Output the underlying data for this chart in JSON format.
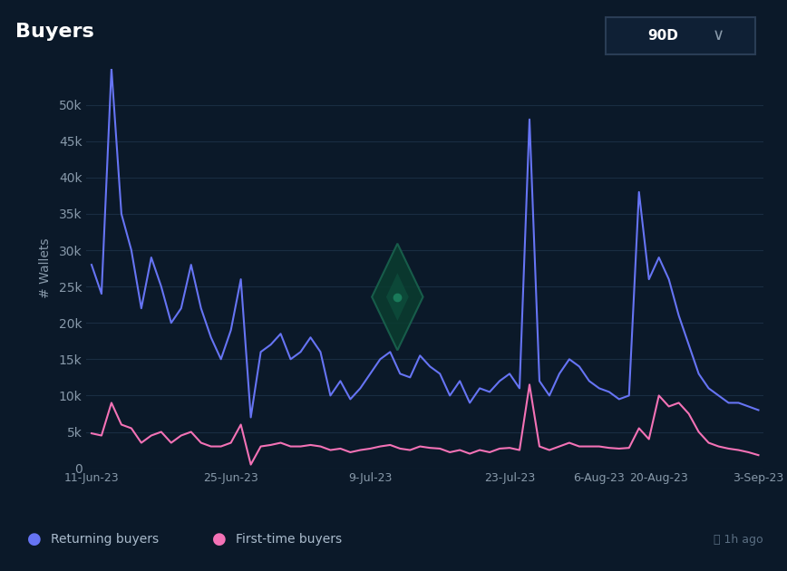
{
  "title": "Buyers",
  "ylabel": "# Wallets",
  "background_color": "#0b1929",
  "plot_bg_color": "#0b1929",
  "grid_color": "#1a2d42",
  "returning_color": "#6674f4",
  "firsttime_color": "#f472b6",
  "yticks": [
    0,
    5000,
    10000,
    15000,
    20000,
    25000,
    30000,
    35000,
    40000,
    45000,
    50000
  ],
  "ytick_labels": [
    "0",
    "5k",
    "10k",
    "15k",
    "20k",
    "25k",
    "30k",
    "35k",
    "40k",
    "45k",
    "50k"
  ],
  "xtick_labels": [
    "11-Jun-23",
    "25-Jun-23",
    "9-Jul-23",
    "23-Jul-23",
    "6-Aug-23",
    "20-Aug-23",
    "3-Sep-23"
  ],
  "legend_returning": "Returning buyers",
  "legend_firsttime": "First-time buyers",
  "watermark_text": "1h ago",
  "returning_buyers": [
    28000,
    24000,
    55000,
    35000,
    30000,
    22000,
    29000,
    25000,
    20000,
    22000,
    28000,
    22000,
    18000,
    15000,
    19000,
    26000,
    7000,
    16000,
    17000,
    18500,
    15000,
    16000,
    18000,
    16000,
    10000,
    12000,
    9500,
    11000,
    13000,
    15000,
    16000,
    13000,
    12500,
    15500,
    14000,
    13000,
    10000,
    12000,
    9000,
    11000,
    10500,
    12000,
    13000,
    11000,
    48000,
    12000,
    10000,
    13000,
    15000,
    14000,
    12000,
    11000,
    10500,
    9500,
    10000,
    38000,
    26000,
    29000,
    26000,
    21000,
    17000,
    13000,
    11000,
    10000,
    9000,
    9000,
    8500,
    8000
  ],
  "firsttime_buyers": [
    4800,
    4500,
    9000,
    6000,
    5500,
    3500,
    4500,
    5000,
    3500,
    4500,
    5000,
    3500,
    3000,
    3000,
    3500,
    6000,
    500,
    3000,
    3200,
    3500,
    3000,
    3000,
    3200,
    3000,
    2500,
    2700,
    2200,
    2500,
    2700,
    3000,
    3200,
    2700,
    2500,
    3000,
    2800,
    2700,
    2200,
    2500,
    2000,
    2500,
    2200,
    2700,
    2800,
    2500,
    11500,
    3000,
    2500,
    3000,
    3500,
    3000,
    3000,
    3000,
    2800,
    2700,
    2800,
    5500,
    4000,
    10000,
    8500,
    9000,
    7500,
    5000,
    3500,
    3000,
    2700,
    2500,
    2200,
    1800
  ],
  "badge_border_color": "#2a3d55",
  "tick_color": "#8899aa",
  "ylabel_color": "#8899aa"
}
